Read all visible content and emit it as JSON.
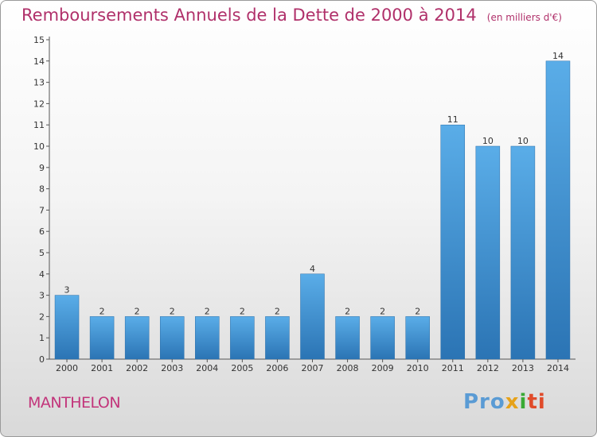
{
  "header": {
    "title": "Remboursements Annuels de la Dette de 2000 à 2014",
    "unit": "(en milliers d'€)"
  },
  "footer": {
    "commune": "MANTHELON",
    "logo_text": "Proxiti"
  },
  "colors": {
    "bar_top": "#5aade8",
    "bar_bottom": "#2b74b4",
    "title": "#b0306a",
    "commune": "#c2347a"
  },
  "chart_data": {
    "type": "bar",
    "title": "Remboursements Annuels de la Dette de 2000 à 2014",
    "subtitle": "(en milliers d'€)",
    "xlabel": "",
    "ylabel": "",
    "categories": [
      "2000",
      "2001",
      "2002",
      "2003",
      "2004",
      "2005",
      "2006",
      "2007",
      "2008",
      "2009",
      "2010",
      "2011",
      "2012",
      "2013",
      "2014"
    ],
    "values": [
      3,
      2,
      2,
      2,
      2,
      2,
      2,
      4,
      2,
      2,
      2,
      11,
      10,
      10,
      14
    ],
    "data_labels": [
      "3",
      "2",
      "2",
      "2",
      "2",
      "2",
      "2",
      "4",
      "2",
      "2",
      "2",
      "11",
      "10",
      "10",
      "14"
    ],
    "ylim": [
      0,
      15
    ],
    "yticks": [
      0,
      1,
      2,
      3,
      4,
      5,
      6,
      7,
      8,
      9,
      10,
      11,
      12,
      13,
      14,
      15
    ],
    "grid": false,
    "legend": "none"
  }
}
